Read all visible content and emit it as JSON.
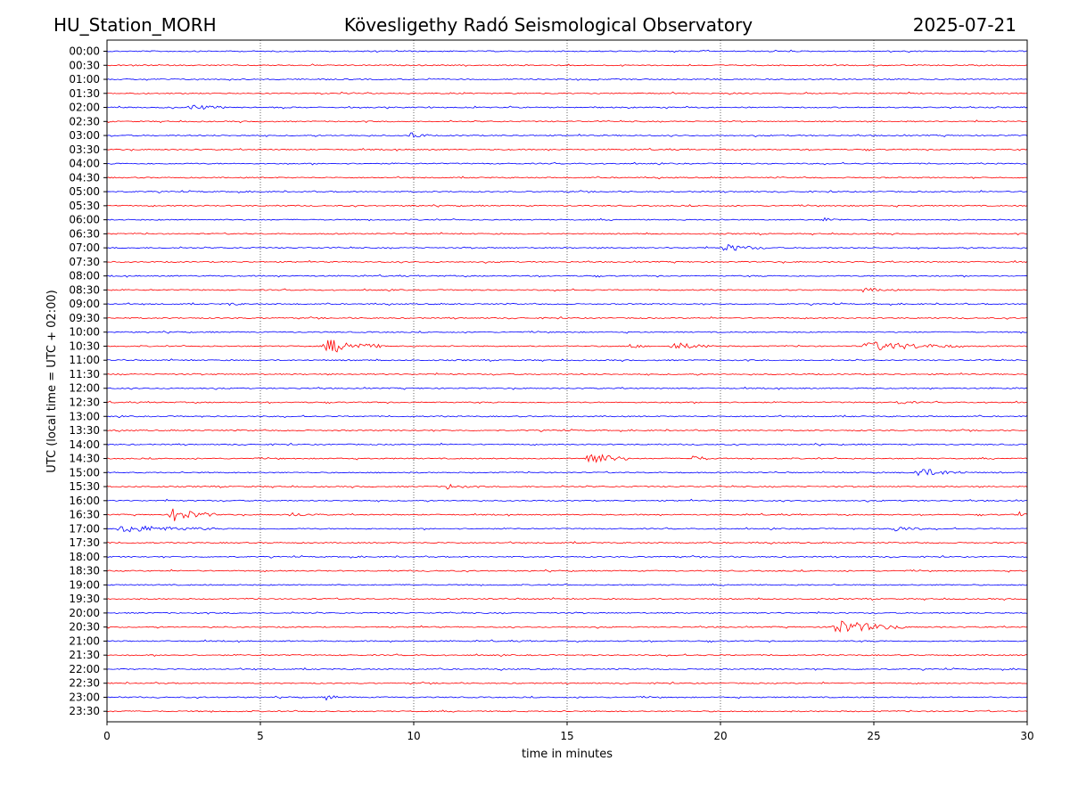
{
  "header": {
    "station": "HU_Station_MORH",
    "observatory": "Kövesligethy Radó Seismological Observatory",
    "date": "2025-07-21"
  },
  "chart_data": {
    "type": "line",
    "title": "Kövesligethy Radó Seismological Observatory",
    "xlabel": "time in minutes",
    "ylabel": "UTC (local time = UTC + 02:00)",
    "xlim": [
      0,
      30
    ],
    "x_ticks": [
      "0",
      "5",
      "10",
      "15",
      "20",
      "25",
      "30"
    ],
    "x_tick_values": [
      0,
      5,
      10,
      15,
      20,
      25,
      30
    ],
    "grid": "vertical-dotted",
    "line_colors": [
      "#0000ff",
      "#ff0000"
    ],
    "rows": [
      "00:00",
      "00:30",
      "01:00",
      "01:30",
      "02:00",
      "02:30",
      "03:00",
      "03:30",
      "04:00",
      "04:30",
      "05:00",
      "05:30",
      "06:00",
      "06:30",
      "07:00",
      "07:30",
      "08:00",
      "08:30",
      "09:00",
      "09:30",
      "10:00",
      "10:30",
      "11:00",
      "11:30",
      "12:00",
      "12:30",
      "13:00",
      "13:30",
      "14:00",
      "14:30",
      "15:00",
      "15:30",
      "16:00",
      "16:30",
      "17:00",
      "17:30",
      "18:00",
      "18:30",
      "19:00",
      "19:30",
      "20:00",
      "20:30",
      "21:00",
      "21:30",
      "22:00",
      "22:30",
      "23:00",
      "23:30"
    ],
    "events": [
      {
        "row": "02:00",
        "start_min": 2.6,
        "end_min": 4.0,
        "amp": 3
      },
      {
        "row": "03:00",
        "start_min": 9.8,
        "end_min": 10.5,
        "amp": 4
      },
      {
        "row": "06:00",
        "start_min": 23.3,
        "end_min": 24.0,
        "amp": 2
      },
      {
        "row": "07:00",
        "start_min": 20.0,
        "end_min": 21.5,
        "amp": 4
      },
      {
        "row": "08:30",
        "start_min": 24.5,
        "end_min": 25.8,
        "amp": 2
      },
      {
        "row": "09:00",
        "start_min": 3.9,
        "end_min": 4.4,
        "amp": 2
      },
      {
        "row": "10:30",
        "start_min": 7.0,
        "end_min": 9.0,
        "amp": 8
      },
      {
        "row": "10:30",
        "start_min": 17.0,
        "end_min": 17.5,
        "amp": 3
      },
      {
        "row": "10:30",
        "start_min": 18.3,
        "end_min": 19.8,
        "amp": 4
      },
      {
        "row": "10:30",
        "start_min": 24.5,
        "end_min": 28.0,
        "amp": 5
      },
      {
        "row": "12:30",
        "start_min": 25.7,
        "end_min": 26.4,
        "amp": 2
      },
      {
        "row": "14:30",
        "start_min": 15.5,
        "end_min": 17.0,
        "amp": 8
      },
      {
        "row": "14:30",
        "start_min": 19.0,
        "end_min": 19.8,
        "amp": 3
      },
      {
        "row": "15:00",
        "start_min": 26.2,
        "end_min": 28.0,
        "amp": 5
      },
      {
        "row": "15:30",
        "start_min": 11.0,
        "end_min": 11.8,
        "amp": 3
      },
      {
        "row": "16:30",
        "start_min": 2.0,
        "end_min": 3.5,
        "amp": 8
      },
      {
        "row": "16:30",
        "start_min": 5.8,
        "end_min": 7.0,
        "amp": 2
      },
      {
        "row": "16:30",
        "start_min": 29.7,
        "end_min": 30.0,
        "amp": 3
      },
      {
        "row": "17:00",
        "start_min": 0.2,
        "end_min": 3.5,
        "amp": 4
      },
      {
        "row": "17:00",
        "start_min": 25.5,
        "end_min": 26.6,
        "amp": 3
      },
      {
        "row": "20:30",
        "start_min": 23.5,
        "end_min": 26.0,
        "amp": 8
      },
      {
        "row": "23:00",
        "start_min": 7.1,
        "end_min": 7.6,
        "amp": 3
      }
    ]
  }
}
